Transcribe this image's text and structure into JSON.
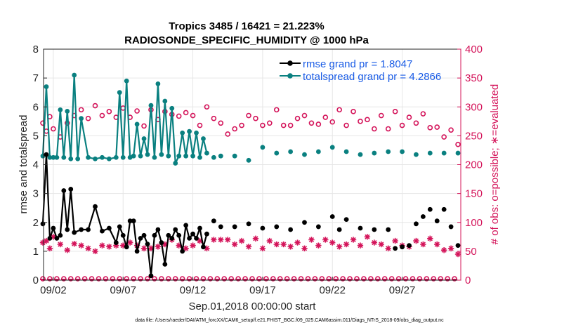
{
  "chart_data": {
    "type": "line",
    "title": "Tropics 3485 / 16421 = 21.223%",
    "subtitle": "RADIOSONDE_SPECIFIC_HUMIDITY @ 1000 hPa",
    "xlabel": "Sep.01,2018 00:00:00 start",
    "ylabel": "rmse and totalspread",
    "y2label": "# of obs: o=possible; ∗=evaluated",
    "xlim": [
      0.3,
      30.2
    ],
    "ylim": [
      0,
      8
    ],
    "y2lim": [
      0,
      400
    ],
    "x_ticks": [
      1,
      6,
      11,
      16,
      21,
      26
    ],
    "x_tick_labels": [
      "09/02",
      "09/07",
      "09/12",
      "09/17",
      "09/22",
      "09/27"
    ],
    "y_ticks": [
      0,
      1,
      2,
      3,
      4,
      5,
      6,
      7,
      8
    ],
    "y2_ticks": [
      0,
      50,
      100,
      150,
      200,
      250,
      300,
      350,
      400
    ],
    "grid": true,
    "legend_position": "top-right",
    "footnote": "data file: /Users/raeder/DAI/ATM_forcXX/CAM6_setup/f.e21.FHIST_BGC.f09_025.CAM6assim.011/Diags_NTrS_2018-09/obs_diag_output.nc",
    "series": [
      {
        "name": "rmse grand pr = 1.8047",
        "color": "#000000",
        "axis": "left",
        "marker": "filled-circle",
        "x": [
          0.25,
          0.5,
          0.75,
          1.0,
          1.25,
          1.5,
          1.75,
          2.0,
          2.25,
          2.5,
          3.0,
          3.5,
          4.0,
          4.5,
          5.0,
          5.5,
          5.75,
          6.0,
          6.25,
          6.5,
          6.75,
          7.0,
          7.25,
          7.5,
          7.75,
          8.0,
          8.25,
          8.5,
          8.75,
          9.0,
          9.25,
          9.5,
          9.75,
          10.0,
          10.25,
          10.5,
          10.75,
          11.0,
          11.25,
          11.5,
          11.75,
          12.0,
          12.5,
          13.0,
          14.0,
          15.0,
          16.0,
          17.0,
          18.0,
          19.0,
          20.0,
          21.0,
          21.5,
          22.0,
          23.0,
          24.0,
          25.0,
          25.5,
          26.0,
          26.5,
          27.0,
          27.5,
          28.0,
          28.5,
          29.0,
          29.5,
          30.0
        ],
        "y": [
          1.95,
          4.35,
          1.45,
          1.8,
          1.45,
          1.55,
          3.1,
          1.75,
          3.15,
          1.65,
          1.75,
          1.75,
          2.55,
          1.7,
          1.8,
          1.3,
          1.85,
          1.55,
          1.15,
          2.05,
          2.05,
          1.0,
          1.45,
          1.55,
          1.25,
          0.15,
          1.55,
          1.75,
          1.3,
          0.55,
          1.55,
          1.45,
          1.75,
          1.55,
          1.0,
          1.9,
          1.45,
          1.6,
          1.45,
          1.8,
          1.15,
          1.6,
          2.05,
          1.85,
          1.85,
          1.95,
          1.8,
          1.85,
          1.75,
          2.0,
          1.85,
          2.2,
          1.75,
          2.1,
          1.8,
          1.75,
          1.75,
          1.1,
          1.15,
          1.2,
          1.95,
          2.2,
          2.45,
          2.05,
          2.45,
          1.85,
          1.2
        ]
      },
      {
        "name": "totalspread grand pr = 4.2866",
        "color": "#0a8080",
        "axis": "left",
        "marker": "filled-circle",
        "x": [
          0.25,
          0.5,
          0.75,
          1.0,
          1.25,
          1.5,
          1.75,
          2.0,
          2.25,
          2.5,
          2.75,
          3.0,
          3.5,
          4.0,
          4.5,
          5.0,
          5.5,
          5.75,
          6.0,
          6.25,
          6.5,
          6.75,
          7.0,
          7.25,
          7.5,
          7.75,
          8.0,
          8.25,
          8.5,
          8.75,
          9.0,
          9.25,
          9.5,
          9.75,
          10.0,
          10.25,
          10.5,
          10.75,
          11.0,
          11.25,
          11.5,
          11.75,
          12.0,
          12.5,
          13.0,
          14.0,
          15.0,
          16.0,
          17.0,
          18.0,
          19.0,
          20.0,
          21.0,
          22.0,
          23.0,
          24.0,
          25.0,
          26.0,
          27.0,
          28.0,
          29.0,
          30.0
        ],
        "y": [
          4.3,
          6.7,
          4.25,
          4.25,
          4.25,
          5.9,
          4.25,
          5.85,
          4.2,
          7.1,
          4.2,
          5.6,
          4.25,
          4.2,
          4.25,
          4.2,
          4.25,
          6.5,
          4.25,
          6.9,
          4.25,
          4.3,
          5.4,
          4.3,
          4.9,
          4.35,
          6.05,
          4.25,
          6.8,
          4.35,
          6.2,
          4.3,
          5.95,
          4.05,
          4.3,
          5.1,
          4.3,
          5.15,
          4.3,
          5.1,
          4.25,
          4.9,
          4.4,
          4.25,
          4.3,
          4.3,
          4.15,
          4.6,
          4.4,
          4.45,
          4.35,
          4.45,
          4.6,
          4.45,
          4.35,
          4.4,
          4.45,
          4.45,
          4.35,
          4.4,
          4.4,
          4.4
        ]
      },
      {
        "name": "obs possible",
        "color": "#d4145a",
        "axis": "right",
        "marker": "open-circle",
        "x": [
          0.25,
          0.5,
          0.75,
          1.0,
          1.5,
          2.0,
          2.5,
          3.0,
          3.5,
          4.0,
          4.5,
          5.0,
          5.5,
          6.0,
          6.5,
          7.0,
          7.5,
          8.0,
          8.5,
          9.0,
          9.5,
          10.0,
          10.5,
          11.0,
          11.5,
          12.0,
          12.5,
          13.0,
          13.5,
          14.0,
          14.5,
          15.0,
          15.5,
          16.0,
          16.5,
          17.0,
          17.5,
          18.0,
          18.5,
          19.0,
          19.5,
          20.0,
          20.5,
          21.0,
          21.5,
          22.0,
          22.5,
          23.0,
          23.5,
          24.0,
          24.5,
          25.0,
          25.5,
          26.0,
          26.5,
          27.0,
          27.5,
          28.0,
          28.5,
          29.0,
          29.5,
          30.0
        ],
        "y": [
          272,
          258,
          283,
          262,
          248,
          272,
          285,
          295,
          280,
          302,
          285,
          292,
          282,
          298,
          282,
          293,
          267,
          295,
          278,
          292,
          287,
          284,
          290,
          285,
          268,
          300,
          280,
          272,
          253,
          262,
          268,
          285,
          280,
          268,
          272,
          295,
          268,
          268,
          280,
          285,
          272,
          270,
          282,
          274,
          295,
          268,
          292,
          275,
          278,
          262,
          285,
          262,
          292,
          268,
          282,
          272,
          288,
          264,
          265,
          248,
          260,
          235
        ]
      },
      {
        "name": "obs evaluated",
        "color": "#d4145a",
        "axis": "right",
        "marker": "asterisk",
        "x": [
          0.25,
          0.5,
          0.75,
          1.0,
          1.5,
          2.0,
          2.5,
          3.0,
          3.5,
          4.0,
          4.5,
          5.0,
          5.5,
          6.0,
          6.5,
          7.0,
          7.5,
          8.0,
          8.5,
          9.0,
          9.5,
          10.0,
          10.5,
          11.0,
          11.5,
          12.0,
          12.5,
          13.0,
          13.5,
          14.0,
          14.5,
          15.0,
          15.5,
          16.0,
          16.5,
          17.0,
          17.5,
          18.0,
          18.5,
          19.0,
          19.5,
          20.0,
          20.5,
          21.0,
          21.5,
          22.0,
          22.5,
          23.0,
          23.5,
          24.0,
          24.5,
          25.0,
          25.5,
          26.0,
          26.5,
          27.0,
          27.5,
          28.0,
          28.5,
          29.0,
          29.5,
          30.0
        ],
        "y": [
          65,
          68,
          55,
          75,
          62,
          52,
          63,
          60,
          55,
          50,
          60,
          58,
          60,
          60,
          65,
          60,
          55,
          55,
          58,
          62,
          70,
          60,
          55,
          60,
          68,
          55,
          70,
          70,
          70,
          62,
          68,
          58,
          72,
          55,
          68,
          62,
          62,
          58,
          65,
          55,
          70,
          60,
          70,
          65,
          58,
          62,
          70,
          60,
          75,
          65,
          62,
          55,
          68,
          60,
          58,
          68,
          62,
          72,
          62,
          52,
          55,
          45
        ]
      }
    ]
  }
}
